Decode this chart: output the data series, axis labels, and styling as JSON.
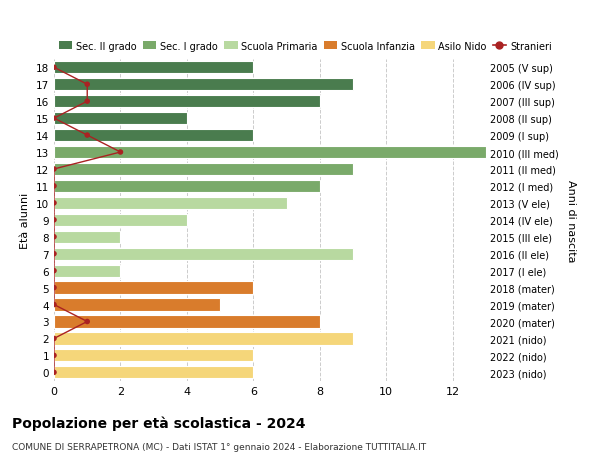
{
  "title": "Popolazione per età scolastica - 2024",
  "subtitle": "COMUNE DI SERRAPETRONA (MC) - Dati ISTAT 1° gennaio 2024 - Elaborazione TUTTITALIA.IT",
  "xlabel_left": "Età alunni",
  "ylabel_right": "Anni di nascita",
  "ages": [
    18,
    17,
    16,
    15,
    14,
    13,
    12,
    11,
    10,
    9,
    8,
    7,
    6,
    5,
    4,
    3,
    2,
    1,
    0
  ],
  "right_labels": [
    "2005 (V sup)",
    "2006 (IV sup)",
    "2007 (III sup)",
    "2008 (II sup)",
    "2009 (I sup)",
    "2010 (III med)",
    "2011 (II med)",
    "2012 (I med)",
    "2013 (V ele)",
    "2014 (IV ele)",
    "2015 (III ele)",
    "2016 (II ele)",
    "2017 (I ele)",
    "2018 (mater)",
    "2019 (mater)",
    "2020 (mater)",
    "2021 (nido)",
    "2022 (nido)",
    "2023 (nido)"
  ],
  "bar_values": [
    6,
    9,
    8,
    4,
    6,
    13,
    9,
    8,
    7,
    4,
    2,
    9,
    2,
    6,
    5,
    8,
    9,
    6,
    6
  ],
  "bar_colors": [
    "#4a7c4e",
    "#4a7c4e",
    "#4a7c4e",
    "#4a7c4e",
    "#4a7c4e",
    "#7aaa6a",
    "#7aaa6a",
    "#7aaa6a",
    "#b8d9a0",
    "#b8d9a0",
    "#b8d9a0",
    "#b8d9a0",
    "#b8d9a0",
    "#d97c2c",
    "#d97c2c",
    "#d97c2c",
    "#f5d67a",
    "#f5d67a",
    "#f5d67a"
  ],
  "stranieri_values": [
    0,
    1,
    1,
    0,
    1,
    2,
    0,
    0,
    0,
    0,
    0,
    0,
    0,
    0,
    0,
    1,
    0,
    0,
    0
  ],
  "stranieri_color": "#aa2222",
  "legend_items": [
    {
      "label": "Sec. II grado",
      "color": "#4a7c4e"
    },
    {
      "label": "Sec. I grado",
      "color": "#7aaa6a"
    },
    {
      "label": "Scuola Primaria",
      "color": "#b8d9a0"
    },
    {
      "label": "Scuola Infanzia",
      "color": "#d97c2c"
    },
    {
      "label": "Asilo Nido",
      "color": "#f5d67a"
    },
    {
      "label": "Stranieri",
      "color": "#aa2222"
    }
  ],
  "xlim": [
    0,
    13
  ],
  "xticks": [
    0,
    2,
    4,
    6,
    8,
    10,
    12
  ],
  "background_color": "#ffffff",
  "grid_color": "#cccccc"
}
